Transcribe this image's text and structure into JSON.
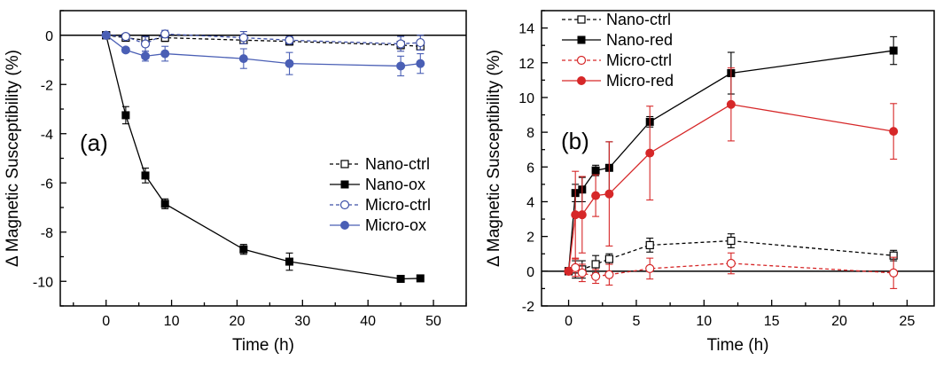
{
  "chart_data": [
    {
      "type": "line",
      "panel_label": "(a)",
      "xlabel": "Time (h)",
      "ylabel": "Δ Magnetic Susceptibility (%)",
      "xlim": [
        -7,
        55
      ],
      "ylim": [
        -11,
        1
      ],
      "xticks": [
        0,
        10,
        20,
        30,
        40,
        50
      ],
      "yticks": [
        0,
        -2,
        -4,
        -6,
        -8,
        -10
      ],
      "zero_line": true,
      "legend_position": "middle-right",
      "series": [
        {
          "name": "Nano-ctrl",
          "color": "#000000",
          "line": "dashed",
          "marker": "square-open",
          "x": [
            0,
            3,
            6,
            9,
            21,
            28,
            45,
            48
          ],
          "y": [
            0,
            -0.1,
            -0.2,
            -0.1,
            -0.2,
            -0.25,
            -0.4,
            -0.45
          ],
          "err": [
            0,
            0.1,
            0.1,
            0.15,
            0.15,
            0.15,
            0.15,
            0.15
          ]
        },
        {
          "name": "Nano-ox",
          "color": "#000000",
          "line": "solid",
          "marker": "square-filled",
          "x": [
            0,
            3,
            6,
            9,
            21,
            28,
            45,
            48
          ],
          "y": [
            0,
            -3.25,
            -5.7,
            -6.85,
            -8.7,
            -9.2,
            -9.9,
            -9.88
          ],
          "err": [
            0,
            0.35,
            0.3,
            0.2,
            0.2,
            0.35,
            0.05,
            0.05
          ]
        },
        {
          "name": "Micro-ctrl",
          "color": "#3f51a8",
          "line": "dashed",
          "marker": "circle-open",
          "x": [
            0,
            3,
            6,
            9,
            21,
            28,
            45,
            48
          ],
          "y": [
            0,
            -0.05,
            -0.35,
            0.05,
            -0.1,
            -0.2,
            -0.35,
            -0.3
          ],
          "err": [
            0,
            0.1,
            0.3,
            0.15,
            0.25,
            0.15,
            0.3,
            0.3
          ]
        },
        {
          "name": "Micro-ox",
          "color": "#4a5fb5",
          "line": "solid",
          "marker": "circle-filled",
          "x": [
            0,
            3,
            6,
            9,
            21,
            28,
            45,
            48
          ],
          "y": [
            0,
            -0.6,
            -0.85,
            -0.75,
            -0.95,
            -1.15,
            -1.25,
            -1.15
          ],
          "err": [
            0,
            0.1,
            0.2,
            0.3,
            0.4,
            0.45,
            0.4,
            0.4
          ]
        }
      ]
    },
    {
      "type": "line",
      "panel_label": "(b)",
      "xlabel": "Time (h)",
      "ylabel": "Δ Magnetic Susceptibility (%)",
      "xlim": [
        -2,
        27
      ],
      "ylim": [
        -2,
        15
      ],
      "xticks": [
        0,
        5,
        10,
        15,
        20,
        25
      ],
      "yticks": [
        -2,
        0,
        2,
        4,
        6,
        8,
        10,
        12,
        14
      ],
      "zero_line": true,
      "legend_position": "top-left",
      "series": [
        {
          "name": "Nano-ctrl",
          "color": "#000000",
          "line": "dashed",
          "marker": "square-open",
          "x": [
            0,
            0.5,
            1,
            2,
            3,
            6,
            12,
            24
          ],
          "y": [
            0,
            0.1,
            0.1,
            0.4,
            0.7,
            1.5,
            1.75,
            0.9
          ],
          "err": [
            0,
            0.5,
            0.5,
            0.5,
            0.3,
            0.4,
            0.4,
            0.3
          ]
        },
        {
          "name": "Nano-red",
          "color": "#000000",
          "line": "solid",
          "marker": "square-filled",
          "x": [
            0,
            0.5,
            1,
            2,
            3,
            6,
            12,
            24
          ],
          "y": [
            0,
            4.5,
            4.7,
            5.8,
            5.95,
            8.6,
            11.4,
            12.7
          ],
          "err": [
            0,
            0.5,
            0.7,
            0.3,
            1.5,
            0.3,
            1.2,
            0.8
          ]
        },
        {
          "name": "Micro-ctrl",
          "color": "#d62728",
          "line": "dashed",
          "marker": "circle-open",
          "x": [
            0,
            0.5,
            1,
            2,
            3,
            6,
            12,
            24
          ],
          "y": [
            0,
            0.2,
            -0.1,
            -0.3,
            -0.2,
            0.15,
            0.45,
            -0.1
          ],
          "err": [
            0,
            0.5,
            0.5,
            0.4,
            0.6,
            0.6,
            0.6,
            0.9
          ]
        },
        {
          "name": "Micro-red",
          "color": "#d62728",
          "line": "solid",
          "marker": "circle-filled",
          "x": [
            0,
            0.5,
            1,
            2,
            3,
            6,
            12,
            24
          ],
          "y": [
            0,
            3.25,
            3.25,
            4.35,
            4.45,
            6.8,
            9.6,
            8.05
          ],
          "err": [
            0,
            2.5,
            2.2,
            1.2,
            3.0,
            2.7,
            2.1,
            1.6
          ]
        }
      ]
    }
  ]
}
